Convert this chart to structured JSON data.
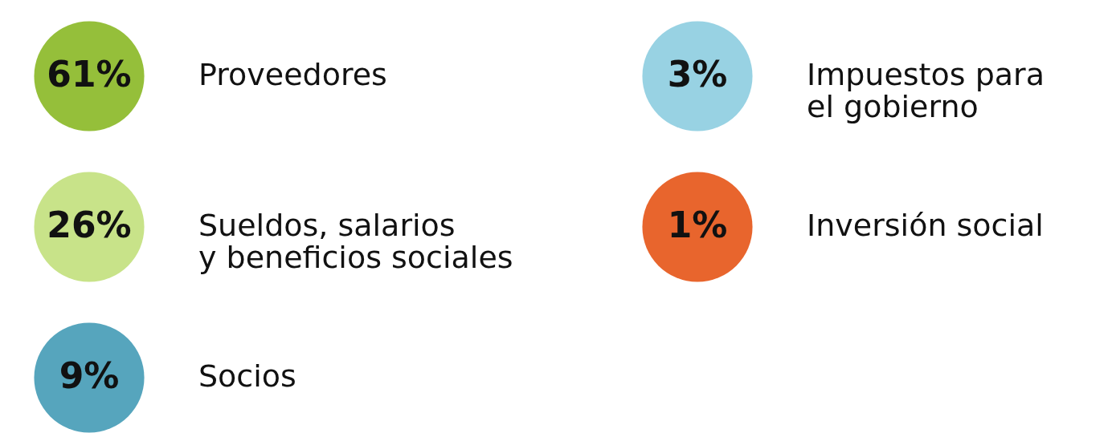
{
  "chart_data": {
    "type": "other",
    "categories": [
      "Proveedores",
      "Sueldos, salarios\ny beneficios sociales",
      "Socios",
      "Impuestos para\nel gobierno",
      "Inversión social"
    ],
    "values": [
      61,
      26,
      9,
      3,
      1
    ],
    "value_labels": [
      "61%",
      "26%",
      "9%",
      "3%",
      "1%"
    ],
    "colors": [
      "#95bf3a",
      "#c8e389",
      "#56a5bd",
      "#98d2e3",
      "#e8652d"
    ]
  }
}
